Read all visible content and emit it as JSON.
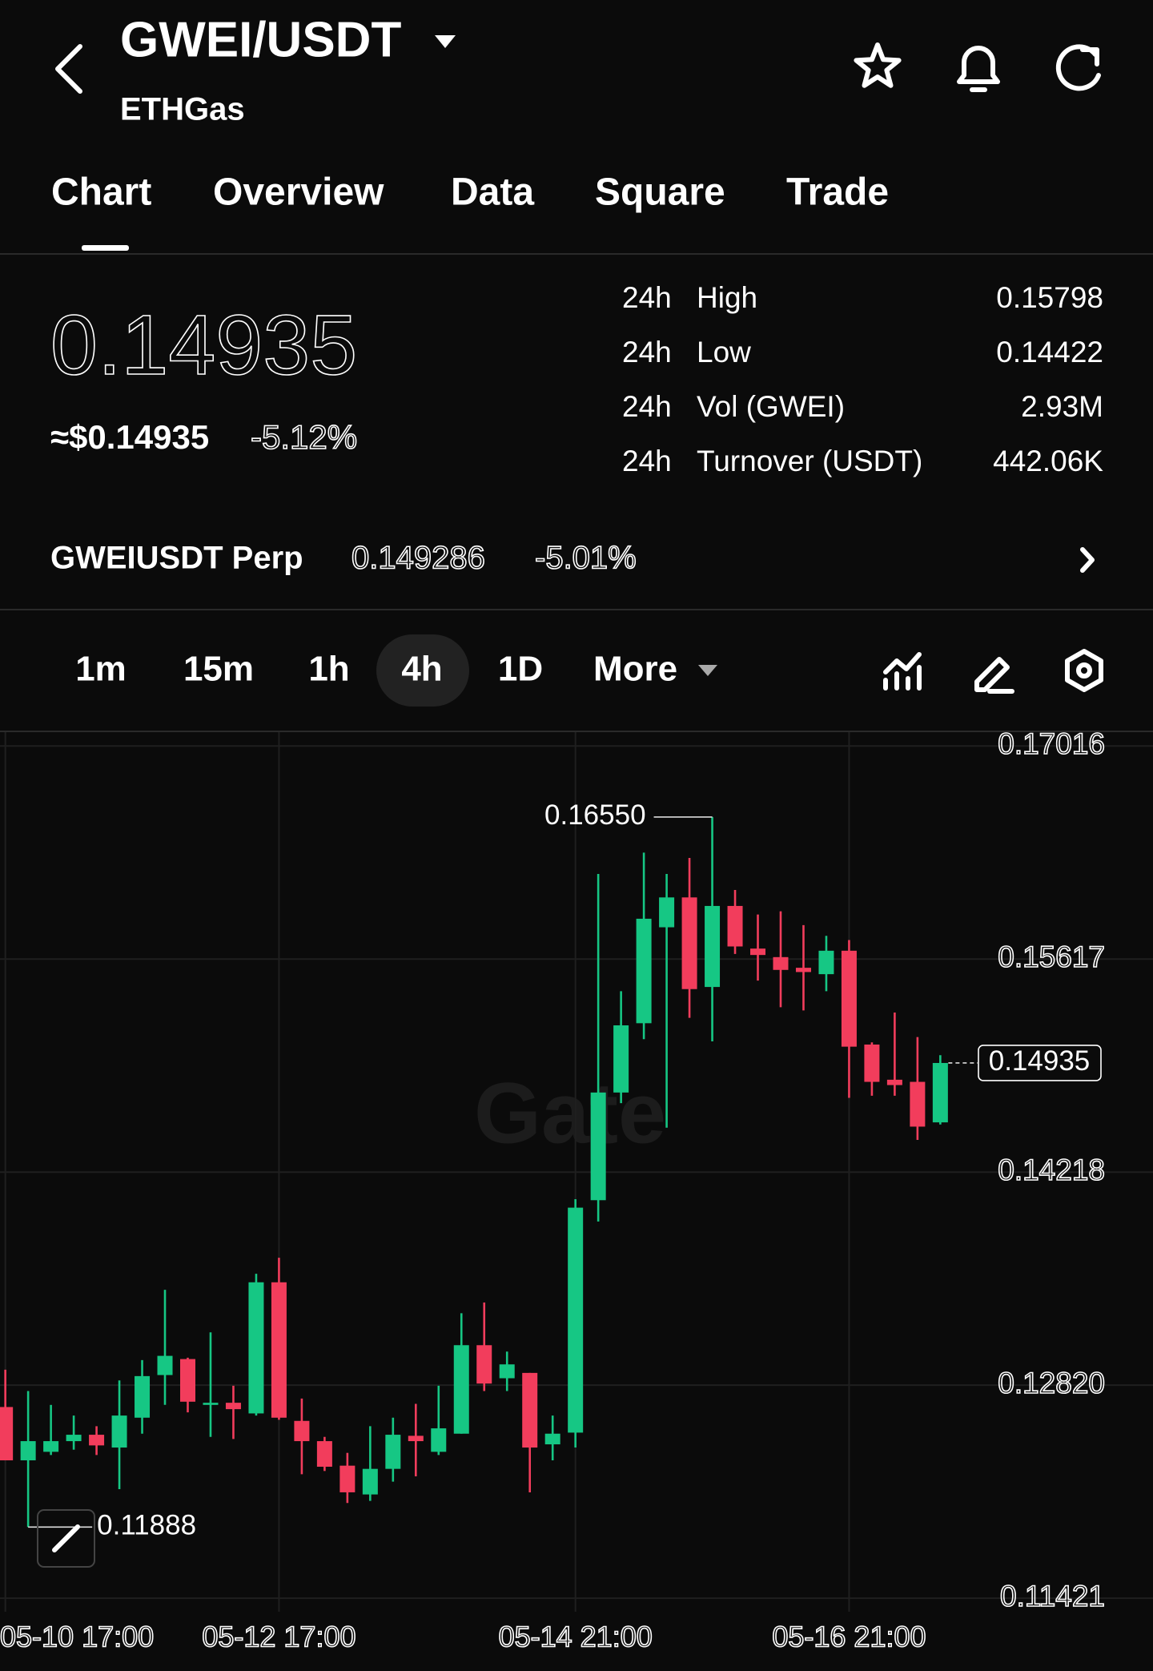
{
  "header": {
    "title": "GWEI/USDT",
    "subtitle": "ETHGas"
  },
  "tabs": [
    "Chart",
    "Overview",
    "Data",
    "Square",
    "Trade"
  ],
  "price": {
    "last": "0.14935",
    "usd": "≈$0.14935",
    "change": "-5.12%"
  },
  "stats": {
    "rows": [
      [
        "24h",
        "High",
        "0.15798"
      ],
      [
        "24h",
        "Low",
        "0.14422"
      ],
      [
        "24h",
        "Vol (GWEI)",
        "2.93M"
      ],
      [
        "24h",
        "Turnover (USDT)",
        "442.06K"
      ]
    ]
  },
  "perp": {
    "name": "GWEIUSDT Perp",
    "price": "0.149286",
    "change": "-5.01%"
  },
  "intervals": [
    "1m",
    "15m",
    "1h",
    "4h",
    "1D",
    "More"
  ],
  "chart_data": {
    "type": "candlestick",
    "watermark": "Gate",
    "categories": [
      "05-10 17:00",
      null,
      null,
      null,
      null,
      null,
      null,
      null,
      null,
      null,
      null,
      null,
      "05-12 17:00",
      null,
      null,
      null,
      null,
      null,
      null,
      null,
      null,
      null,
      null,
      null,
      null,
      "05-14 21:00",
      null,
      null,
      null,
      null,
      null,
      null,
      null,
      null,
      null,
      null,
      null,
      "05-16 21:00",
      null,
      null,
      null,
      null
    ],
    "open": [
      0.12676,
      0.12326,
      0.12382,
      0.12452,
      0.12494,
      0.1241,
      0.12606,
      0.12886,
      0.12991,
      0.1269,
      0.12704,
      0.12634,
      0.13495,
      0.12585,
      0.12452,
      0.12291,
      0.12102,
      0.1227,
      0.12487,
      0.12382,
      0.12501,
      0.13082,
      0.12865,
      0.129,
      0.12431,
      0.12508,
      0.14034,
      0.14741,
      0.15196,
      0.15826,
      0.16022,
      0.15434,
      0.15966,
      0.15686,
      0.1563,
      0.1556,
      0.15518,
      0.15672,
      0.15056,
      0.14825,
      0.14811,
      0.14545
    ],
    "high": [
      0.12921,
      0.12781,
      0.1269,
      0.1262,
      0.1255,
      0.12851,
      0.12984,
      0.13446,
      0.13,
      0.13166,
      0.12816,
      0.13551,
      0.13656,
      0.12732,
      0.1248,
      0.12375,
      0.1255,
      0.12606,
      0.12697,
      0.12816,
      0.13292,
      0.13362,
      0.1304,
      0.129,
      0.1262,
      0.14041,
      0.16176,
      0.15406,
      0.16316,
      0.16176,
      0.16281,
      0.1655,
      0.16071,
      0.1591,
      0.15931,
      0.1584,
      0.1577,
      0.15742,
      0.1507,
      0.15266,
      0.15105,
      0.14986
    ],
    "low": [
      0.12326,
      0.11888,
      0.12361,
      0.12396,
      0.12361,
      0.12137,
      0.12501,
      0.1269,
      0.12641,
      0.1248,
      0.12466,
      0.1262,
      0.12592,
      0.12235,
      0.12256,
      0.12046,
      0.1206,
      0.12186,
      0.12221,
      0.12361,
      0.12501,
      0.12781,
      0.12781,
      0.12116,
      0.12326,
      0.1241,
      0.13894,
      0.14671,
      0.15091,
      0.1451,
      0.15231,
      0.15077,
      0.15651,
      0.15476,
      0.15301,
      0.1528,
      0.15406,
      0.14706,
      0.1472,
      0.1472,
      0.1443,
      0.14531
    ],
    "close": [
      0.12326,
      0.12452,
      0.12452,
      0.12494,
      0.12424,
      0.1262,
      0.12879,
      0.13012,
      0.12711,
      0.12704,
      0.12662,
      0.13495,
      0.12606,
      0.12452,
      0.12284,
      0.12116,
      0.1227,
      0.12494,
      0.12452,
      0.12536,
      0.13082,
      0.1283,
      0.12956,
      0.1241,
      0.12501,
      0.13985,
      0.14741,
      0.15182,
      0.15882,
      0.16022,
      0.1542,
      0.15966,
      0.157,
      0.15644,
      0.15546,
      0.15532,
      0.15672,
      0.15042,
      0.14811,
      0.1479,
      0.14517,
      0.14935
    ],
    "up_color": "#16c784",
    "down_color": "#f23d5c",
    "ylim": [
      0.11332,
      0.17107
    ],
    "yticks": [
      0.17016,
      0.15617,
      0.14218,
      {
        "value": 0.1282,
        "label": "0.12820"
      },
      0.11421
    ],
    "grid": true,
    "high_annotation": {
      "value": 0.1655,
      "label": "0.16550"
    },
    "low_annotation": 0.11888,
    "last_price": 0.14935
  }
}
